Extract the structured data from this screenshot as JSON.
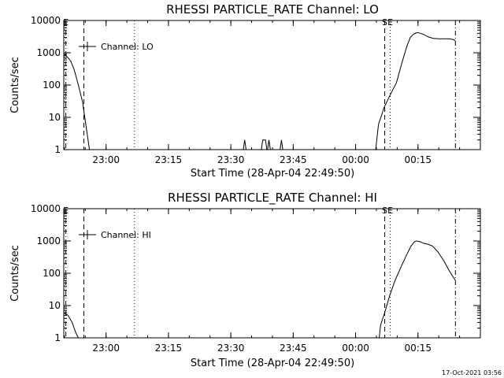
{
  "footer": {
    "timestamp": "17-Oct-2021 03:56"
  },
  "chart_data": [
    {
      "type": "line",
      "title": "RHESSI PARTICLE_RATE Channel: LO",
      "xlabel": "Start Time (28-Apr-04 22:49:50)",
      "ylabel": "Counts/sec",
      "y_scale": "log",
      "ylim": [
        1,
        10000
      ],
      "xlim": [
        "22:49:50",
        "00:30:00"
      ],
      "x_ticks": [
        "23:00",
        "23:15",
        "23:30",
        "23:45",
        "00:00",
        "00:15"
      ],
      "y_ticks": [
        "1",
        "10",
        "100",
        "1000",
        "10000"
      ],
      "legend": {
        "entries": [
          "Channel: LO"
        ],
        "position": "top-left"
      },
      "markers": [
        {
          "label": "E",
          "time": "22:50:20",
          "style": "dash-dot"
        },
        {
          "label": "",
          "time": "22:54:40",
          "style": "dashed"
        },
        {
          "label": "",
          "time": "23:06:50",
          "style": "dotted"
        },
        {
          "label": "S",
          "time": "00:07:00",
          "style": "dashed"
        },
        {
          "label": "E",
          "time": "00:08:20",
          "style": "dotted"
        },
        {
          "label": "",
          "time": "00:24:00",
          "style": "dash-dot"
        }
      ],
      "series": [
        {
          "name": "Channel: LO",
          "segments": [
            {
              "x": [
                "22:49:50",
                "22:50:40",
                "22:51:30",
                "22:52:20",
                "22:53:20",
                "22:54:20",
                "22:55:20",
                "22:56:00"
              ],
              "y": [
                900,
                750,
                550,
                300,
                100,
                30,
                4,
                1
              ]
            },
            {
              "x": [
                "23:33:00",
                "23:33:20",
                "23:33:40"
              ],
              "y": [
                1,
                2,
                1
              ]
            },
            {
              "x": [
                "23:37:20",
                "23:37:40",
                "23:38:00",
                "23:38:20",
                "23:38:40"
              ],
              "y": [
                1,
                2,
                2,
                2,
                1
              ]
            },
            {
              "x": [
                "23:38:50",
                "23:39:10",
                "23:39:30"
              ],
              "y": [
                1,
                2,
                1
              ]
            },
            {
              "x": [
                "23:41:50",
                "23:42:10",
                "23:42:30"
              ],
              "y": [
                1,
                2,
                1
              ]
            },
            {
              "x": [
                "00:04:50",
                "00:05:30",
                "00:06:50",
                "00:08:20",
                "00:09:50",
                "00:11:10",
                "00:12:20",
                "00:13:10",
                "00:14:00",
                "00:14:50",
                "00:15:40",
                "00:16:30",
                "00:17:30",
                "00:18:40",
                "00:20:00",
                "00:21:30",
                "00:22:30",
                "00:23:20",
                "00:24:00"
              ],
              "y": [
                1,
                6,
                20,
                50,
                120,
                500,
                1600,
                3000,
                3800,
                4200,
                4000,
                3600,
                3100,
                2800,
                2700,
                2700,
                2700,
                2600,
                2400
              ]
            }
          ]
        }
      ]
    },
    {
      "type": "line",
      "title": "RHESSI PARTICLE_RATE Channel: HI",
      "xlabel": "Start Time (28-Apr-04 22:49:50)",
      "ylabel": "Counts/sec",
      "y_scale": "log",
      "ylim": [
        1,
        10000
      ],
      "xlim": [
        "22:49:50",
        "00:30:00"
      ],
      "x_ticks": [
        "23:00",
        "23:15",
        "23:30",
        "23:45",
        "00:00",
        "00:15"
      ],
      "y_ticks": [
        "1",
        "10",
        "100",
        "1000",
        "10000"
      ],
      "legend": {
        "entries": [
          "Channel: HI"
        ],
        "position": "top-left"
      },
      "markers": [
        {
          "label": "E",
          "time": "22:50:20",
          "style": "dash-dot"
        },
        {
          "label": "",
          "time": "22:54:40",
          "style": "dashed"
        },
        {
          "label": "",
          "time": "23:06:50",
          "style": "dotted"
        },
        {
          "label": "S",
          "time": "00:07:00",
          "style": "dashed"
        },
        {
          "label": "E",
          "time": "00:08:20",
          "style": "dotted"
        },
        {
          "label": "",
          "time": "00:24:00",
          "style": "dash-dot"
        }
      ],
      "series": [
        {
          "name": "Channel: HI",
          "segments": [
            {
              "x": [
                "22:49:50",
                "22:50:50",
                "22:51:50",
                "22:52:40",
                "22:53:20"
              ],
              "y": [
                6,
                5,
                3,
                1.5,
                1
              ]
            },
            {
              "x": [
                "00:05:40",
                "00:06:00",
                "00:07:00",
                "00:08:10",
                "00:09:30",
                "00:10:50",
                "00:12:10",
                "00:13:20",
                "00:14:10",
                "00:14:40",
                "00:15:30",
                "00:16:20",
                "00:17:20",
                "00:18:30",
                "00:19:50",
                "00:21:10",
                "00:22:30",
                "00:24:00"
              ],
              "y": [
                1,
                2.5,
                6,
                20,
                60,
                150,
                350,
                700,
                950,
                1000,
                950,
                850,
                800,
                700,
                450,
                250,
                120,
                60
              ]
            }
          ]
        }
      ]
    }
  ]
}
